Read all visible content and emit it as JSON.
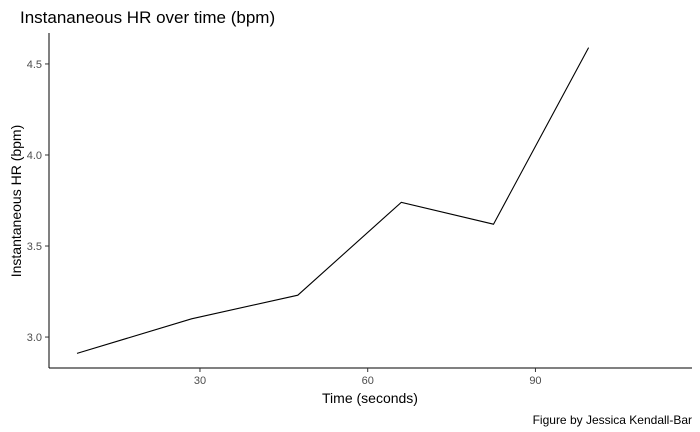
{
  "chart_data": {
    "type": "line",
    "title": "Instananeous HR over time (bpm)",
    "xlabel": "Time (seconds)",
    "ylabel": "Instantaneous HR (bpm)",
    "caption": "Figure by Jessica Kendall-Bar",
    "xlim": [
      3,
      118
    ],
    "ylim": [
      2.83,
      4.67
    ],
    "x_ticks": [
      30,
      60,
      90
    ],
    "x_tick_labels": [
      "30",
      "60",
      "90"
    ],
    "y_ticks": [
      3.0,
      3.5,
      4.0,
      4.5
    ],
    "y_tick_labels": [
      "3.0",
      "3.5",
      "4.0",
      "4.5"
    ],
    "grid": false,
    "legend": "none",
    "line_color": "#000000",
    "series": [
      {
        "x": [
          8,
          28.5,
          47.5,
          66,
          82.5,
          99.5
        ],
        "y": [
          2.91,
          3.1,
          3.23,
          3.74,
          3.62,
          4.59
        ]
      }
    ]
  }
}
